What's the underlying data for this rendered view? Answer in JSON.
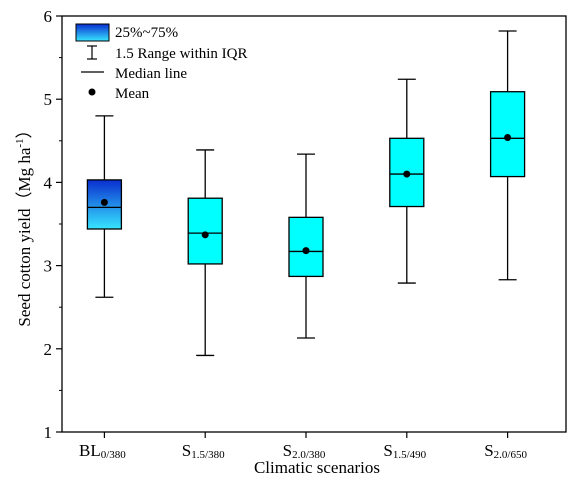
{
  "chart_data": {
    "type": "box",
    "ylabel": "Seed cotton yield（Mg ha",
    "ylabel_sup": "-1",
    "ylabel_end": "）",
    "xlabel": "Climatic scenarios",
    "categories": [
      "BL",
      "S",
      "S",
      "S",
      "S"
    ],
    "category_subscripts": [
      "0/380",
      "1.5/380",
      "2.0/380",
      "1.5/490",
      "2.0/650"
    ],
    "boxes": [
      {
        "whisker_low": 2.62,
        "q1": 3.44,
        "median": 3.7,
        "q3": 4.03,
        "whisker_high": 4.8,
        "mean": 3.76
      },
      {
        "whisker_low": 1.92,
        "q1": 3.02,
        "median": 3.39,
        "q3": 3.81,
        "whisker_high": 4.39,
        "mean": 3.37
      },
      {
        "whisker_low": 2.13,
        "q1": 2.87,
        "median": 3.17,
        "q3": 3.58,
        "whisker_high": 4.34,
        "mean": 3.18
      },
      {
        "whisker_low": 2.79,
        "q1": 3.71,
        "median": 4.1,
        "q3": 4.53,
        "whisker_high": 5.24,
        "mean": 4.1
      },
      {
        "whisker_low": 2.83,
        "q1": 4.07,
        "median": 4.53,
        "q3": 5.09,
        "whisker_high": 5.82,
        "mean": 4.54
      }
    ],
    "box_colors": [
      [
        "#0a2ed0",
        "#38e6ff"
      ],
      [
        "#00ffff",
        "#00ffff"
      ],
      [
        "#00ffff",
        "#00ffff"
      ],
      [
        "#00ffff",
        "#00ffff"
      ],
      [
        "#00ffff",
        "#00ffff"
      ]
    ],
    "ylim": [
      1,
      6
    ],
    "yticks": [
      1,
      2,
      3,
      4,
      5,
      6
    ],
    "yminorticks": [
      1.5,
      2.5,
      3.5,
      4.5,
      5.5
    ],
    "legend": [
      "25%~75%",
      "1.5 Range within IQR",
      "Median line",
      "Mean"
    ],
    "legend_position": "upper left"
  }
}
